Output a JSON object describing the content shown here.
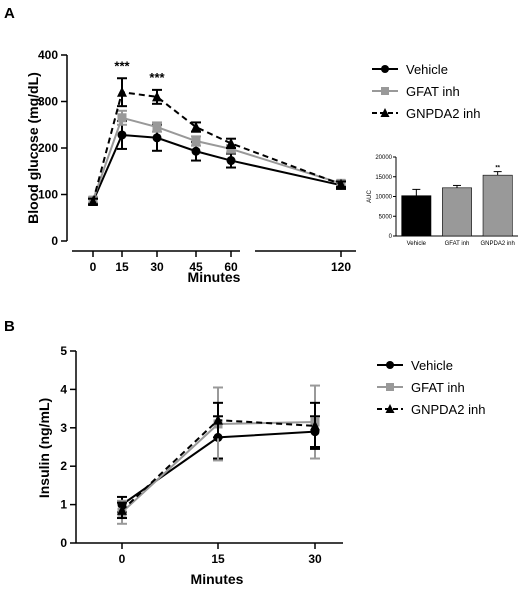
{
  "panels": [
    {
      "label": "A",
      "chart_data": {
        "type": "line",
        "ylabel": "Blood glucose (mg/dL)",
        "xlabel": "Minutes",
        "x": [
          0,
          15,
          30,
          45,
          60,
          120
        ],
        "xticks": [
          "0",
          "15",
          "30",
          "45",
          "60",
          "120"
        ],
        "xscale": "broken",
        "ylim": [
          0,
          400
        ],
        "yticks": [
          "0",
          "100",
          "200",
          "300",
          "400"
        ],
        "grid": false,
        "legend_position": "right",
        "series": [
          {
            "name": "Vehicle",
            "color": "#000000",
            "marker": "circle",
            "dash": "solid",
            "values": [
              85,
              228,
              222,
              193,
              173,
              120
            ],
            "errors": [
              6,
              30,
              28,
              20,
              15,
              8
            ]
          },
          {
            "name": "GFAT inh",
            "color": "#999999",
            "marker": "square",
            "dash": "solid",
            "values": [
              88,
              265,
              245,
              215,
              198,
              124
            ],
            "errors": [
              6,
              15,
              10,
              10,
              8,
              6
            ]
          },
          {
            "name": "GNPDA2 inh",
            "color": "#000000",
            "marker": "triangle",
            "dash": "dashed",
            "values": [
              85,
              320,
              310,
              245,
              210,
              122
            ],
            "errors": [
              6,
              30,
              15,
              10,
              10,
              6
            ]
          }
        ],
        "annotations": [
          {
            "x": 15,
            "text": "***"
          },
          {
            "x": 30,
            "text": "***"
          }
        ]
      },
      "inset": {
        "chart_data": {
          "type": "bar",
          "ylabel": "AUC",
          "categories": [
            "Vehicle",
            "GFAT inh",
            "GNPDA2 inh"
          ],
          "values": [
            10200,
            12200,
            15400
          ],
          "errors": [
            1600,
            600,
            900
          ],
          "colors": [
            "#000000",
            "#999999",
            "#999999"
          ],
          "ylim": [
            0,
            20000
          ],
          "yticks": [
            "0",
            "5000",
            "10000",
            "15000",
            "20000"
          ],
          "annotations": [
            {
              "category": "GNPDA2 inh",
              "text": "**"
            }
          ]
        }
      }
    },
    {
      "label": "B",
      "chart_data": {
        "type": "line",
        "ylabel": "Insulin (ng/mL)",
        "xlabel": "Minutes",
        "x": [
          0,
          15,
          30
        ],
        "xticks": [
          "0",
          "15",
          "30"
        ],
        "ylim": [
          0,
          5
        ],
        "yticks": [
          "0",
          "1",
          "2",
          "3",
          "4",
          "5"
        ],
        "grid": false,
        "legend_position": "right",
        "series": [
          {
            "name": "Vehicle",
            "color": "#000000",
            "marker": "circle",
            "dash": "solid",
            "values": [
              1.0,
              2.75,
              2.9
            ],
            "errors": [
              0.2,
              0.55,
              0.4
            ]
          },
          {
            "name": "GFAT inh",
            "color": "#999999",
            "marker": "square",
            "dash": "solid",
            "values": [
              0.8,
              3.1,
              3.15
            ],
            "errors": [
              0.3,
              0.95,
              0.95
            ]
          },
          {
            "name": "GNPDA2 inh",
            "color": "#000000",
            "marker": "triangle",
            "dash": "dashed",
            "values": [
              0.85,
              3.2,
              3.05
            ],
            "errors": [
              0.2,
              0.45,
              0.6
            ]
          }
        ]
      }
    }
  ]
}
